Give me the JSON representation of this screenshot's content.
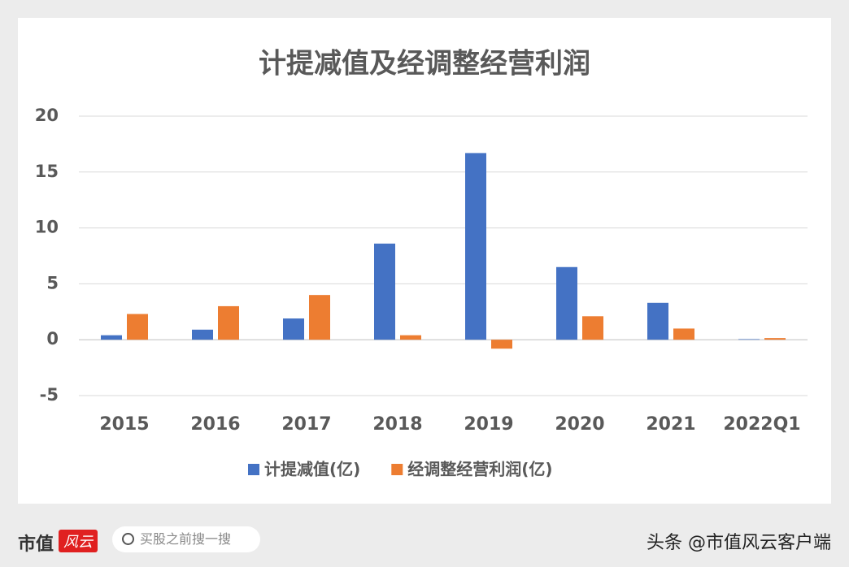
{
  "chart_data": {
    "type": "bar",
    "title": "计提减值及经调整经营利润",
    "categories": [
      "2015",
      "2016",
      "2017",
      "2018",
      "2019",
      "2020",
      "2021",
      "2022Q1"
    ],
    "series": [
      {
        "name": "计提减值(亿)",
        "color": "#4472c4",
        "values": [
          0.4,
          0.9,
          1.9,
          8.6,
          16.7,
          6.5,
          3.3,
          0.05
        ]
      },
      {
        "name": "经调整经营利润(亿)",
        "color": "#ed7d31",
        "values": [
          2.3,
          3.0,
          4.0,
          0.4,
          -0.8,
          2.1,
          1.0,
          0.15
        ]
      }
    ],
    "ylim": [
      -5,
      20
    ],
    "yticks": [
      -5,
      0,
      5,
      10,
      15,
      20
    ],
    "grid": true,
    "legend": "bottom"
  },
  "footer": {
    "logo_text": "市值",
    "logo_badge": "风云",
    "search_placeholder": "买股之前搜一搜",
    "source": "头条 @市值风云客户端"
  }
}
